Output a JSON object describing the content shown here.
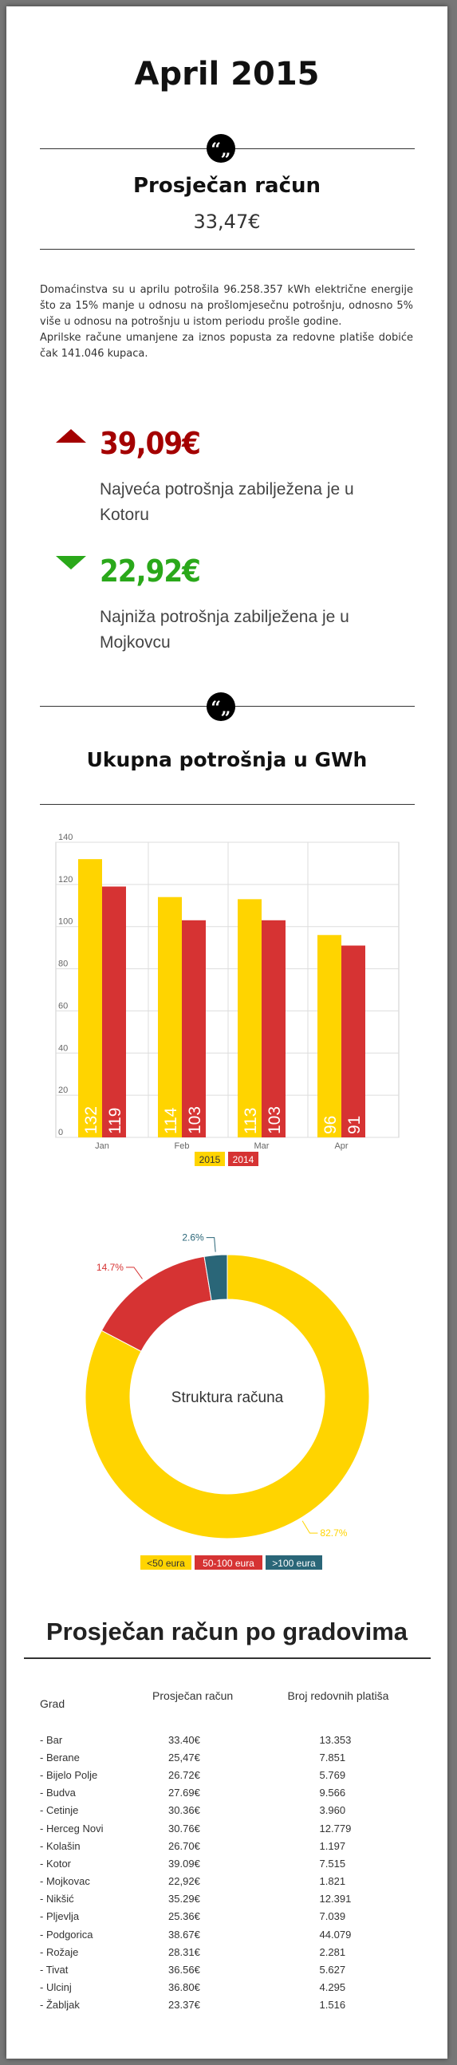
{
  "page_title": "April 2015",
  "avg": {
    "label": "Prosječan račun",
    "value": "33,47€"
  },
  "paragraph1": "Domaćinstva su u aprilu potrošila 96.258.357 kWh električne energije što za 15% manje u odnosu na prošlomjesečnu potrošnju, odnosno 5% više u odnosu na potrošnju u istom periodu prošle godine.",
  "paragraph2": "Aprilske račune umanjene za iznos popusta za redovne platiše dobiće čak 141.046 kupaca.",
  "highest": {
    "value": "39,09€",
    "text": "Najveća potrošnja zabilježena je u Kotoru",
    "color": "#a40000"
  },
  "lowest": {
    "value": "22,92€",
    "text": "Najniža potrošnja zabilježena je u Mojkovcu",
    "color": "#2aa81a"
  },
  "consumption_title": "Ukupna potrošnja u GWh",
  "chart_data": [
    {
      "type": "bar",
      "title": "",
      "categories": [
        "Jan",
        "Feb",
        "Mar",
        "Apr"
      ],
      "series": [
        {
          "name": "2015",
          "values": [
            132,
            114,
            113,
            96
          ],
          "color": "#ffd400"
        },
        {
          "name": "2014",
          "values": [
            119,
            103,
            103,
            91
          ],
          "color": "#d63333"
        }
      ],
      "yticks": [
        0,
        20,
        40,
        60,
        80,
        100,
        120,
        140
      ],
      "ylim": [
        0,
        140
      ],
      "grid": true,
      "legend": "bottom"
    },
    {
      "type": "pie",
      "center_label": "Struktura računa",
      "slices": [
        {
          "name": "<50 eura",
          "value": 82.7,
          "label": "82.7%",
          "color": "#ffd400"
        },
        {
          "name": "50-100 eura",
          "value": 14.7,
          "label": "14.7%",
          "color": "#d63333"
        },
        {
          "name": ">100 eura",
          "value": 2.6,
          "label": "2.6%",
          "color": "#2a6678"
        }
      ],
      "legend": "bottom"
    }
  ],
  "cities_title": "Prosječan račun po gradovima",
  "table": {
    "headers": [
      "Grad",
      "Prosječan račun",
      "Broj redovnih platiša"
    ],
    "rows": [
      [
        "- Bar",
        "33.40€",
        "13.353"
      ],
      [
        "- Berane",
        "25,47€",
        "7.851"
      ],
      [
        "- Bijelo Polje",
        "26.72€",
        "5.769"
      ],
      [
        "- Budva",
        "27.69€",
        "9.566"
      ],
      [
        "- Cetinje",
        "30.36€",
        "3.960"
      ],
      [
        "- Herceg Novi",
        "30.76€",
        "12.779"
      ],
      [
        "- Kolašin",
        "26.70€",
        "1.197"
      ],
      [
        "- Kotor",
        "39.09€",
        "7.515"
      ],
      [
        "- Mojkovac",
        "22,92€",
        "1.821"
      ],
      [
        "- Nikšić",
        "35.29€",
        "12.391"
      ],
      [
        "- Pljevlja",
        "25.36€",
        "7.039"
      ],
      [
        "- Podgorica",
        "38.67€",
        "44.079"
      ],
      [
        "- Rožaje",
        "28.31€",
        "2.281"
      ],
      [
        "- Tivat",
        "36.56€",
        "5.627"
      ],
      [
        "- Ulcinj",
        "36.80€",
        "4.295"
      ],
      [
        "- Žabljak",
        "23.37€",
        "1.516"
      ]
    ]
  }
}
